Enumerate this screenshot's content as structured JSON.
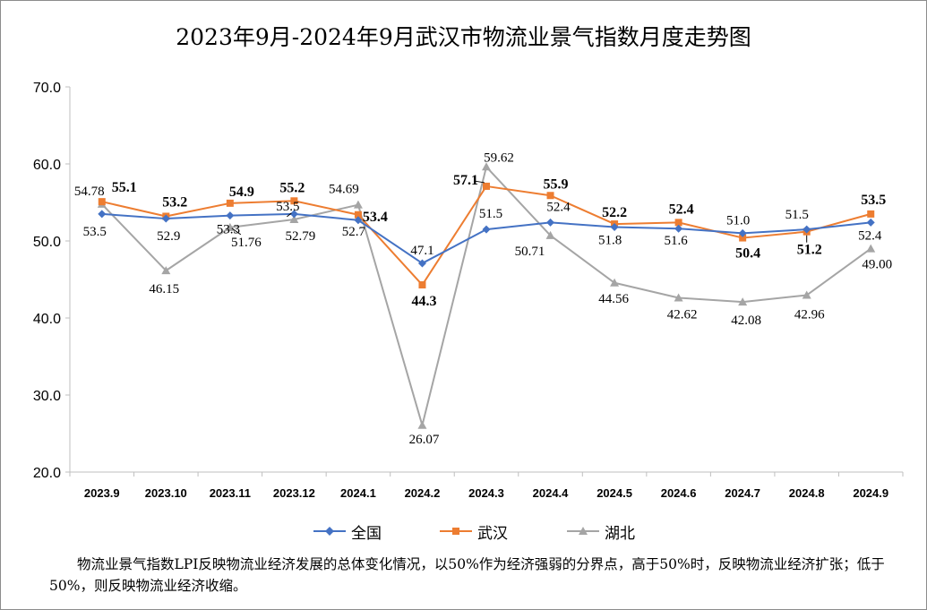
{
  "chart_data": {
    "type": "line",
    "title": "2023年9月-2024年9月武汉市物流业景气指数月度走势图",
    "categories": [
      "2023.9",
      "2023.10",
      "2023.11",
      "2023.12",
      "2024.1",
      "2024.2",
      "2024.3",
      "2024.4",
      "2024.5",
      "2024.6",
      "2024.7",
      "2024.8",
      "2024.9"
    ],
    "ylim": [
      20,
      70
    ],
    "yticks": [
      "20.0",
      "30.0",
      "40.0",
      "50.0",
      "60.0",
      "70.0"
    ],
    "grid": false,
    "legend_position": "bottom",
    "series": [
      {
        "name": "全国",
        "color": "#4472C4",
        "marker": "diamond",
        "values": [
          53.5,
          52.9,
          53.3,
          53.5,
          52.7,
          47.1,
          51.5,
          52.4,
          51.8,
          51.6,
          51.0,
          51.5,
          52.4
        ],
        "labels": [
          "53.5",
          "52.9",
          "53.3",
          "53.5",
          "52.7",
          "47.1",
          "51.5",
          "52.4",
          "51.8",
          "51.6",
          "51.0",
          "51.5",
          "52.4"
        ]
      },
      {
        "name": "武汉",
        "color": "#ED7D31",
        "marker": "square",
        "values": [
          55.1,
          53.2,
          54.9,
          55.2,
          53.4,
          44.3,
          57.1,
          55.9,
          52.2,
          52.4,
          50.4,
          51.2,
          53.5
        ],
        "labels": [
          "55.1",
          "53.2",
          "54.9",
          "55.2",
          "53.4",
          "44.3",
          "57.1",
          "55.9",
          "52.2",
          "52.4",
          "50.4",
          "51.2",
          "53.5"
        ]
      },
      {
        "name": "湖北",
        "color": "#A5A5A5",
        "marker": "triangle",
        "values": [
          54.78,
          46.15,
          51.76,
          52.79,
          54.69,
          26.07,
          59.62,
          50.71,
          44.56,
          42.62,
          42.08,
          42.96,
          49.0
        ],
        "labels": [
          "54.78",
          "46.15",
          "51.76",
          "52.79",
          "54.69",
          "26.07",
          "59.62",
          "50.71",
          "44.56",
          "42.62",
          "42.08",
          "42.96",
          "49.00"
        ]
      }
    ]
  },
  "legend": {
    "items": [
      "全国",
      "武汉",
      "湖北"
    ]
  },
  "note": "物流业景气指数LPI反映物流业经济发展的总体变化情况，以50%作为经济强弱的分界点，高于50%时，反映物流业经济扩张；低于50%，则反映物流业经济收缩。"
}
